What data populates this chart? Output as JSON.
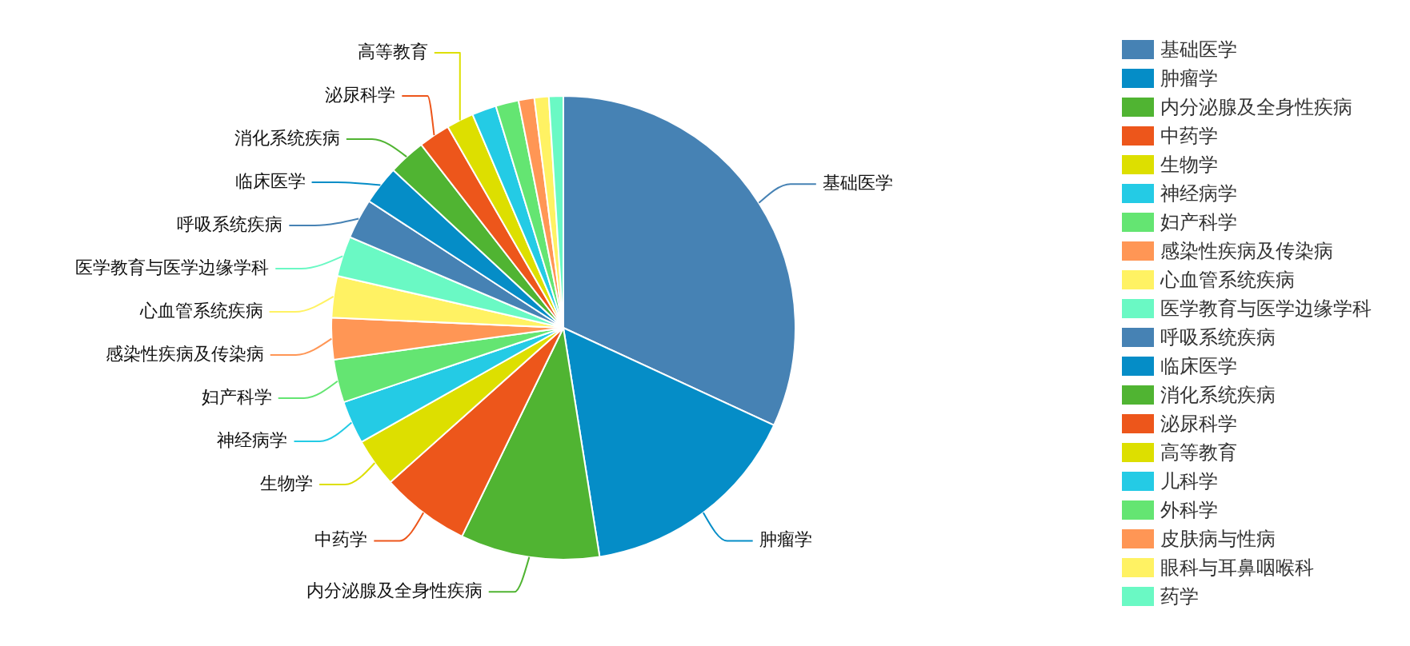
{
  "chart_data": {
    "type": "pie",
    "categories": [
      "基础医学",
      "肿瘤学",
      "内分泌腺及全身性疾病",
      "中药学",
      "生物学",
      "神经病学",
      "妇产科学",
      "感染性疾病及传染病",
      "心血管系统疾病",
      "医学教育与医学边缘学科",
      "呼吸系统疾病",
      "临床医学",
      "消化系统疾病",
      "泌尿科学",
      "高等教育",
      "儿科学",
      "外科学",
      "皮肤病与性病",
      "眼科与耳鼻咽喉科",
      "药学"
    ],
    "values": [
      31.9,
      15.6,
      9.7,
      6.2,
      3.4,
      3.0,
      3.0,
      2.9,
      2.9,
      2.8,
      2.8,
      2.7,
      2.6,
      2.2,
      1.9,
      1.7,
      1.6,
      1.1,
      1.0,
      1.0
    ],
    "colors": [
      "#4682b4",
      "#058dc7",
      "#50b432",
      "#ed561b",
      "#dddf00",
      "#24cbe5",
      "#64e572",
      "#ff9655",
      "#fff263",
      "#6af9c4",
      "#4682b4",
      "#058dc7",
      "#50b432",
      "#ed561b",
      "#dddf00",
      "#24cbe5",
      "#64e572",
      "#ff9655",
      "#fff263",
      "#6af9c4"
    ],
    "legend": "right"
  }
}
